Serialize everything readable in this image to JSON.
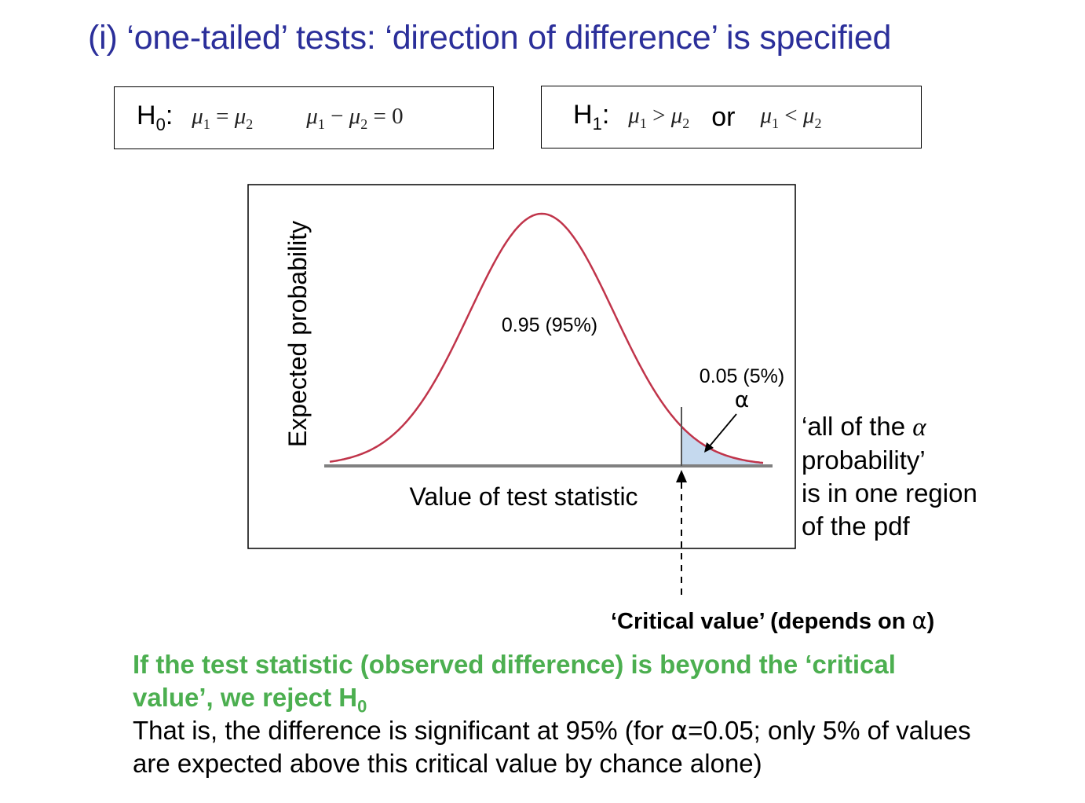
{
  "title": "(i) ‘one-tailed’ tests: ‘direction of difference’ is specified",
  "h0": {
    "label": "H",
    "label_sub": "0",
    "colon": ":",
    "eq1": {
      "a": "μ",
      "a_sub": "1",
      "op": "=",
      "b": "μ",
      "b_sub": "2"
    },
    "eq2": {
      "a": "μ",
      "a_sub": "1",
      "op1": "−",
      "b": "μ",
      "b_sub": "2",
      "op2": "=",
      "c": "0"
    }
  },
  "h1": {
    "label": "H",
    "label_sub": "1",
    "colon": ":",
    "eq1": {
      "a": "μ",
      "a_sub": "1",
      "op": ">",
      "b": "μ",
      "b_sub": "2"
    },
    "or": "or",
    "eq2": {
      "a": "μ",
      "a_sub": "1",
      "op": "<",
      "b": "μ",
      "b_sub": "2"
    }
  },
  "diagram": {
    "y_label": "Expected probability",
    "x_label": "Value of test statistic",
    "center_label": "0.95 (95%)",
    "tail_label": "0.05 (5%)",
    "alpha_symbol": "α",
    "curve_color": "#c0344a",
    "tail_fill": "#c5d9ee",
    "axis_color": "#808080"
  },
  "alpha_note": {
    "line1_pre": "‘all of the ",
    "line1_alpha": "α",
    "line2": "probability’",
    "line3": "is in one region",
    "line4": "of the pdf"
  },
  "critical_value": {
    "pre": "‘Critical value’ (depends on ",
    "alpha": "α",
    "post": ")"
  },
  "conclusion": {
    "green_line1": "If the test statistic (observed difference) is beyond the ‘critical",
    "green_line2": "value’, we reject H",
    "green_sub": "0",
    "green_color": "#4caf50",
    "black_pre": "That is, the difference is significant at 95% (for ",
    "black_alpha": "α",
    "black_post": "=0.05; only 5% of values are expected above this critical value by chance alone)"
  }
}
